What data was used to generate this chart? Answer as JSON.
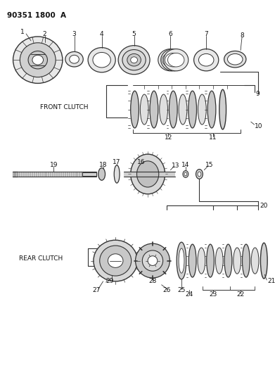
{
  "title": "90351 1800  A",
  "bg_color": "#ffffff",
  "line_color": "#333333",
  "text_color": "#111111",
  "front_clutch_label": "FRONT CLUTCH",
  "rear_clutch_label": "REAR CLUTCH",
  "fig_width": 3.91,
  "fig_height": 5.33,
  "dpi": 100
}
